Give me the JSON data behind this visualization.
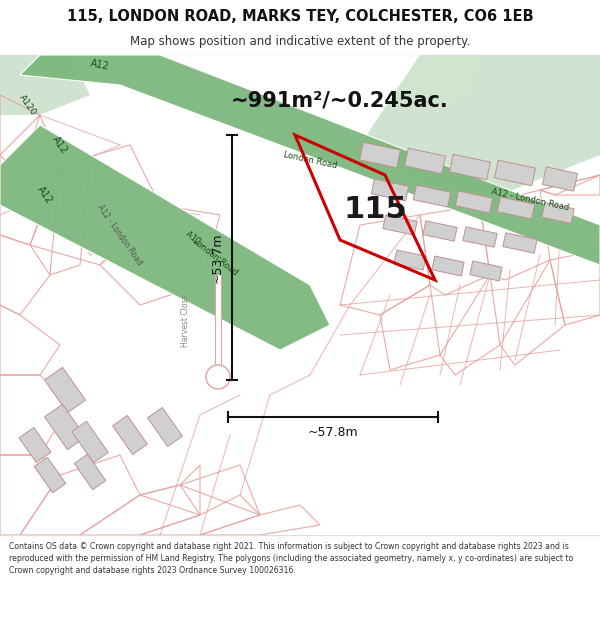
{
  "title": "115, LONDON ROAD, MARKS TEY, COLCHESTER, CO6 1EB",
  "subtitle": "Map shows position and indicative extent of the property.",
  "footer": "Contains OS data © Crown copyright and database right 2021. This information is subject to Crown copyright and database rights 2023 and is reproduced with the permission of HM Land Registry. The polygons (including the associated geometry, namely x, y co-ordinates) are subject to Crown copyright and database rights 2023 Ordnance Survey 100026316.",
  "area_label": "~991m²/~0.245ac.",
  "width_label": "~57.8m",
  "height_label": "~53.7m",
  "property_number": "115",
  "property_red": "#cc0000",
  "building_fill": "#d0d0d0",
  "building_edge": "#c09090",
  "road_green": "#7db87d",
  "road_green2": "#6aaa6a",
  "road_pink": "#e8a0a0",
  "road_pink_light": "#f2d0d0",
  "map_bg": "#f8f8f8",
  "header_bg": "#ffffff",
  "footer_bg": "#ffffff",
  "veg_green": "#c5ddc5",
  "dim_color": "#111111",
  "label_color": "#333333"
}
